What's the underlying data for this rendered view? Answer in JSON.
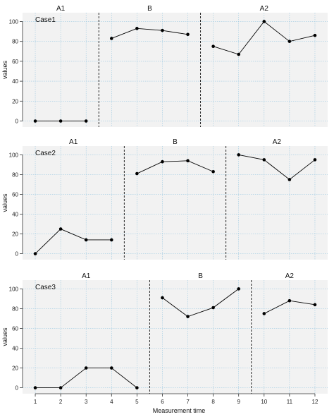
{
  "chart_data": {
    "type": "line",
    "xlabel": "Measurement time",
    "ylabel": "values",
    "x_ticks": [
      1,
      2,
      3,
      4,
      5,
      6,
      7,
      8,
      9,
      10,
      11,
      12
    ],
    "xlim": [
      0.5,
      12.5
    ],
    "ylim": [
      0,
      100
    ],
    "y_ticks": [
      0,
      20,
      40,
      60,
      80,
      100
    ],
    "grid": true,
    "line_color": "#000000",
    "panel_color": "#f2f2f2",
    "grid_color": "#9ecae1",
    "panels": [
      {
        "case_label": "Case1",
        "phase_labels": [
          "A1",
          "B",
          "A2"
        ],
        "phase_breaks": [
          3.5,
          7.5
        ],
        "phases": [
          {
            "name": "A1",
            "x": [
              1,
              2,
              3
            ],
            "y": [
              0,
              0,
              0
            ]
          },
          {
            "name": "B",
            "x": [
              4,
              5,
              6,
              7
            ],
            "y": [
              83,
              93,
              91,
              87
            ]
          },
          {
            "name": "A2",
            "x": [
              8,
              9,
              10,
              11,
              12
            ],
            "y": [
              75,
              67,
              100,
              80,
              86
            ]
          }
        ]
      },
      {
        "case_label": "Case2",
        "phase_labels": [
          "A1",
          "B",
          "A2"
        ],
        "phase_breaks": [
          4.5,
          8.5
        ],
        "phases": [
          {
            "name": "A1",
            "x": [
              1,
              2,
              3,
              4
            ],
            "y": [
              0,
              25,
              14,
              14
            ]
          },
          {
            "name": "B",
            "x": [
              5,
              6,
              7,
              8
            ],
            "y": [
              81,
              93,
              94,
              83
            ]
          },
          {
            "name": "A2",
            "x": [
              9,
              10,
              11,
              12
            ],
            "y": [
              100,
              95,
              75,
              95
            ]
          }
        ]
      },
      {
        "case_label": "Case3",
        "phase_labels": [
          "A1",
          "B",
          "A2"
        ],
        "phase_breaks": [
          5.5,
          9.5
        ],
        "phases": [
          {
            "name": "A1",
            "x": [
              1,
              2,
              3,
              4,
              5
            ],
            "y": [
              0,
              0,
              20,
              20,
              0
            ]
          },
          {
            "name": "B",
            "x": [
              6,
              7,
              8,
              9
            ],
            "y": [
              91,
              72,
              81,
              100
            ]
          },
          {
            "name": "A2",
            "x": [
              10,
              11,
              12
            ],
            "y": [
              75,
              88,
              84
            ]
          }
        ]
      }
    ]
  }
}
